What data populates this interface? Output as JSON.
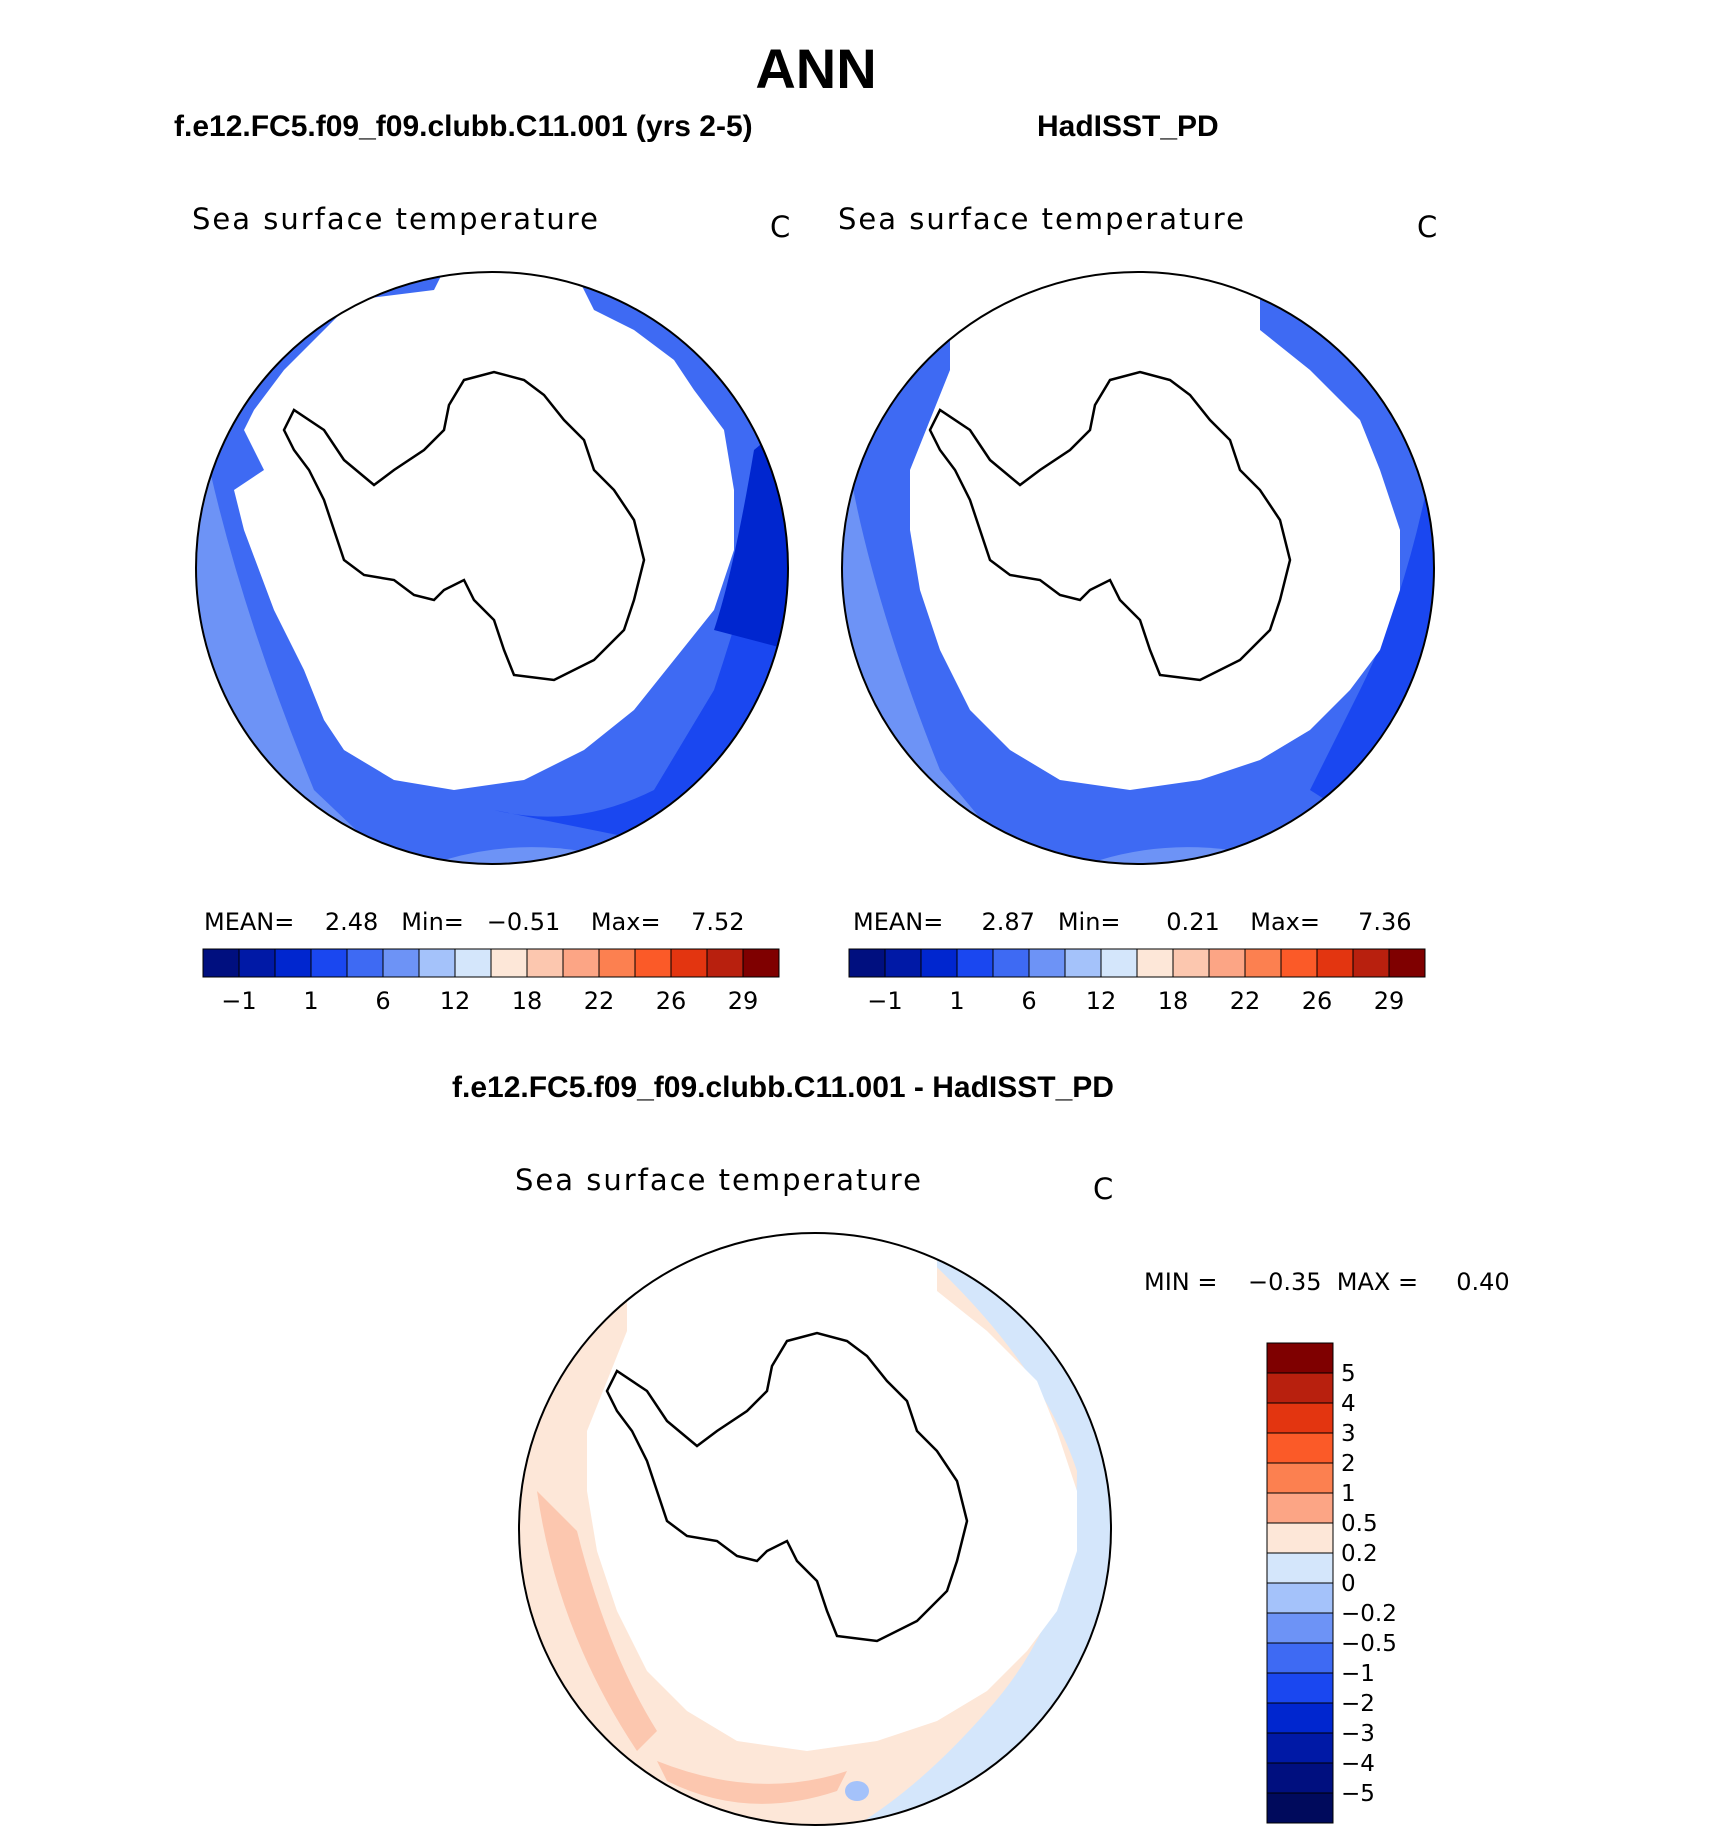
{
  "page": {
    "title": "ANN"
  },
  "panels": [
    {
      "case": "f.e12.FC5.f09_f09.clubb.C11.001 (yrs 2-5)",
      "variable": "Sea surface temperature",
      "units": "C",
      "stats": "MEAN=    2.48   Min=   −0.51    Max=    7.52"
    },
    {
      "case": "HadISST_PD",
      "variable": "Sea surface temperature",
      "units": "C",
      "stats": "MEAN=     2.87   Min=      0.21    Max=     7.36"
    },
    {
      "case": "f.e12.FC5.f09_f09.clubb.C11.001 - HadISST_PD",
      "variable": "Sea surface temperature",
      "units": "C",
      "stats": "MIN =    −0.35  MAX =     0.40"
    }
  ],
  "chart_data": [
    {
      "type": "heatmap",
      "title": "f.e12.FC5.f09_f09.clubb.C11.001 (yrs 2-5)",
      "subtitle": "Sea surface temperature",
      "units": "C",
      "projection": "south polar stereographic",
      "stats": {
        "mean": 2.48,
        "min": -0.51,
        "max": 7.52
      },
      "colorbar": {
        "orientation": "horizontal",
        "colors": [
          "#000f7f",
          "#0019a6",
          "#0026cf",
          "#1a47f0",
          "#3e6af3",
          "#6d93f6",
          "#a4c2fa",
          "#d4e6fb",
          "#fde7d8",
          "#fcc7af",
          "#fca585",
          "#fc8050",
          "#fb5a28",
          "#e33510",
          "#b8200e",
          "#7f0000"
        ],
        "tick_labels": [
          "−1",
          "1",
          "6",
          "12",
          "18",
          "22",
          "26",
          "29"
        ]
      }
    },
    {
      "type": "heatmap",
      "title": "HadISST_PD",
      "subtitle": "Sea surface temperature",
      "units": "C",
      "projection": "south polar stereographic",
      "stats": {
        "mean": 2.87,
        "min": 0.21,
        "max": 7.36
      },
      "colorbar": {
        "orientation": "horizontal",
        "colors": [
          "#000f7f",
          "#0019a6",
          "#0026cf",
          "#1a47f0",
          "#3e6af3",
          "#6d93f6",
          "#a4c2fa",
          "#d4e6fb",
          "#fde7d8",
          "#fcc7af",
          "#fca585",
          "#fc8050",
          "#fb5a28",
          "#e33510",
          "#b8200e",
          "#7f0000"
        ],
        "tick_labels": [
          "−1",
          "1",
          "6",
          "12",
          "18",
          "22",
          "26",
          "29"
        ]
      }
    },
    {
      "type": "heatmap",
      "title": "f.e12.FC5.f09_f09.clubb.C11.001 - HadISST_PD",
      "subtitle": "Sea surface temperature",
      "units": "C",
      "projection": "south polar stereographic",
      "stats": {
        "min": -0.35,
        "max": 0.4
      },
      "colorbar": {
        "orientation": "vertical",
        "colors": [
          "#7f0000",
          "#b8200e",
          "#e33510",
          "#fb5a28",
          "#fc8050",
          "#fca585",
          "#fde7d8",
          "#d4e6fb",
          "#a4c2fa",
          "#6d93f6",
          "#3e6af3",
          "#1a47f0",
          "#0026cf",
          "#0019a6",
          "#000f7f",
          "#000a5c"
        ],
        "tick_labels": [
          "5",
          "4",
          "3",
          "2",
          "1",
          "0.5",
          "0.2",
          "0",
          "−0.2",
          "−0.5",
          "−1",
          "−2",
          "−3",
          "−4",
          "−5"
        ]
      }
    }
  ]
}
